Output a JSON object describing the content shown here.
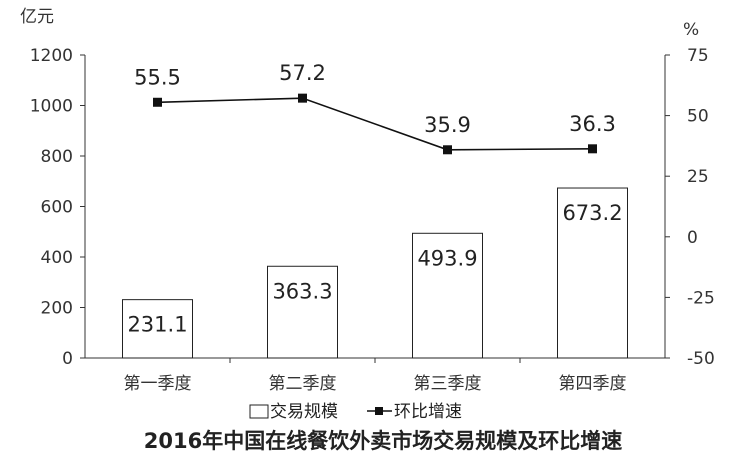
{
  "chart_data": {
    "type": "bar",
    "title": "2016年中国在线餐饮外卖市场交易规模及环比增速",
    "categories": [
      "第一季度",
      "第二季度",
      "第三季度",
      "第四季度"
    ],
    "y_left": {
      "unit": "亿元",
      "ylim": [
        0,
        1200
      ],
      "ticks": [
        0,
        200,
        400,
        600,
        800,
        1000,
        1200
      ]
    },
    "y_right": {
      "unit": "%",
      "ylim": [
        -50,
        75
      ],
      "ticks": [
        -50,
        -25,
        0,
        25,
        50,
        75
      ]
    },
    "series": [
      {
        "name": "交易规模",
        "type": "bar",
        "axis": "left",
        "values": [
          231.1,
          363.3,
          493.9,
          673.2
        ]
      },
      {
        "name": "环比增速",
        "type": "line",
        "axis": "right",
        "values": [
          55.5,
          57.2,
          35.9,
          36.3
        ]
      }
    ],
    "legend_position": "bottom",
    "grid": false
  }
}
